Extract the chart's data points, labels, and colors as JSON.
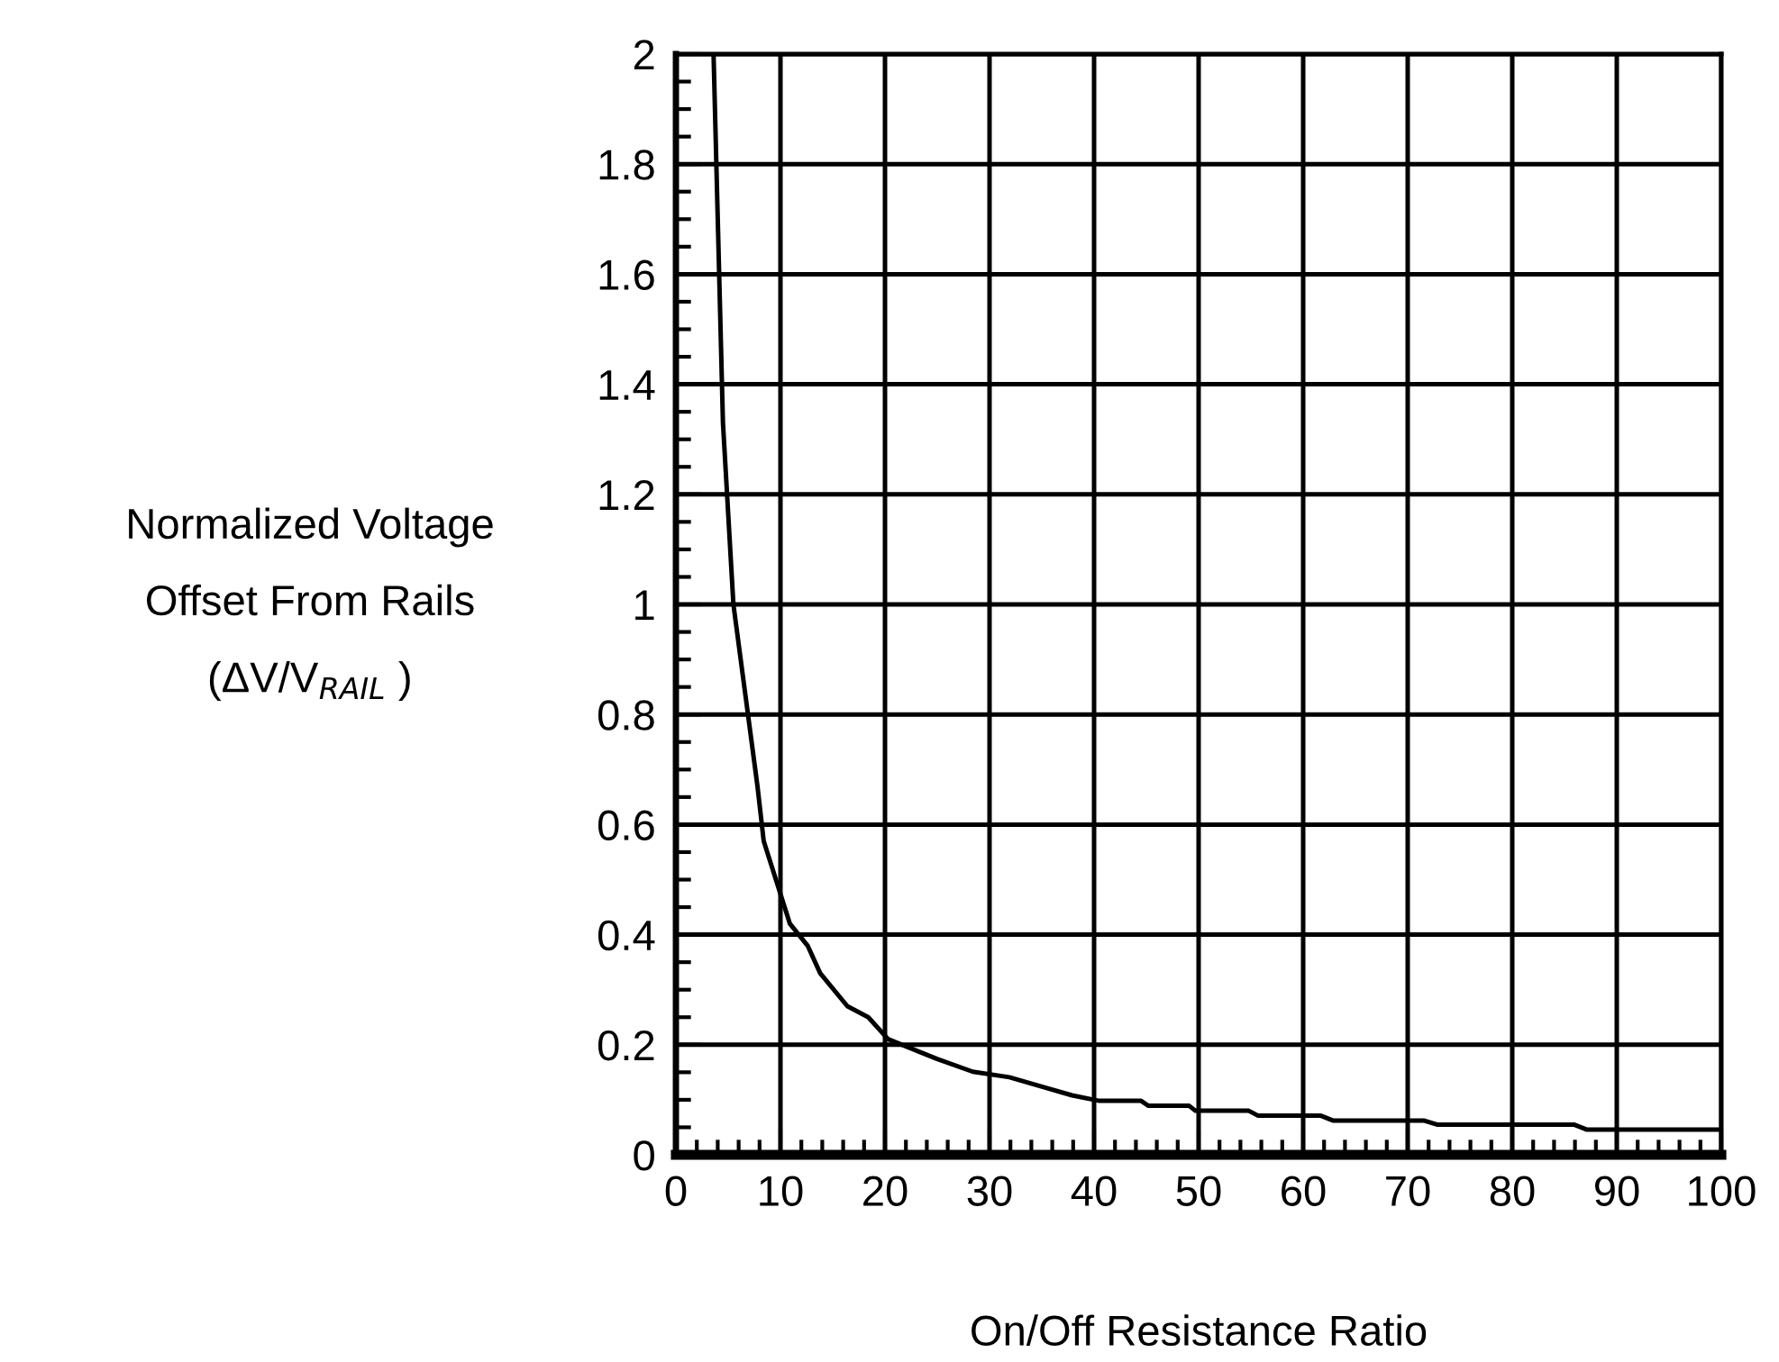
{
  "chart_data": {
    "type": "line",
    "xlabel": "On/Off Resistance Ratio",
    "ylabel": "Normalized Voltage\nOffset From Rails\n(ΔV/V$_{RAIL}$ )",
    "x": [
      3.6,
      4.5,
      5.5,
      7.8,
      8.4,
      10.9,
      12.6,
      13.8,
      16.4,
      18.4,
      20.3,
      25,
      28.4,
      31.9,
      34.8,
      37.9,
      40.5,
      44.5,
      45.2,
      49.1,
      49.7,
      54.8,
      55.7,
      61.7,
      62.9,
      71.6,
      72.8,
      85.9,
      87.1,
      100
    ],
    "series": [
      {
        "color": "#000000",
        "values": [
          2.0,
          1.33,
          1.0,
          0.67,
          0.57,
          0.42,
          0.38,
          0.33,
          0.27,
          0.25,
          0.21,
          0.174,
          0.151,
          0.141,
          0.125,
          0.108,
          0.098,
          0.098,
          0.089,
          0.089,
          0.08,
          0.08,
          0.071,
          0.071,
          0.062,
          0.062,
          0.055,
          0.055,
          0.046,
          0.046
        ]
      }
    ],
    "xlim": [
      0,
      100
    ],
    "xticks": [
      0,
      10,
      20,
      30,
      40,
      50,
      60,
      70,
      80,
      90,
      100
    ],
    "ylim": [
      0,
      2
    ],
    "yticks": [
      0,
      0.2,
      0.4,
      0.6,
      0.8,
      1,
      1.2,
      1.4,
      1.6,
      1.8,
      2
    ],
    "grid": true,
    "line_style": "solid",
    "marker": "none"
  }
}
